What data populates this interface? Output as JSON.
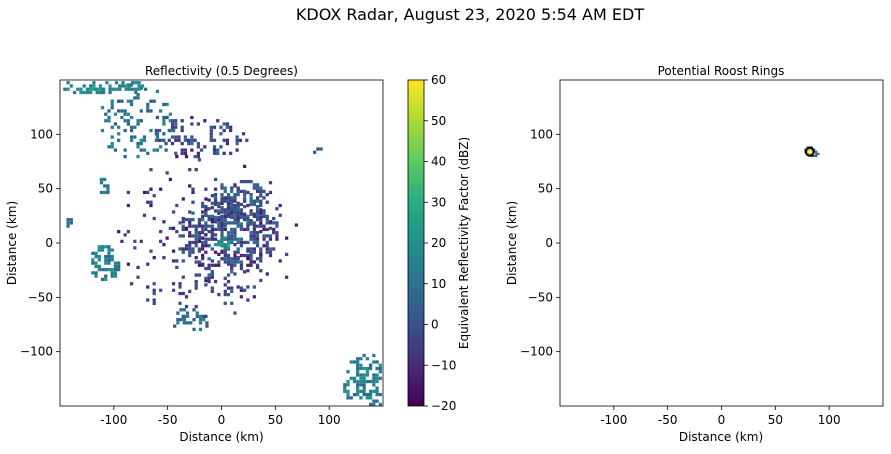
{
  "figure": {
    "title": "KDOX Radar, August 23, 2020 5:54 AM EDT"
  },
  "chart_data": [
    {
      "type": "heatmap",
      "title": "Reflectivity (0.5 Degrees)",
      "xlabel": "Distance (km)",
      "ylabel": "Distance (km)",
      "xlim": [
        -150,
        150
      ],
      "ylim": [
        -150,
        150
      ],
      "xticks": [
        -100,
        -50,
        0,
        50,
        100
      ],
      "yticks": [
        -100,
        -50,
        0,
        50,
        100
      ],
      "xtick_labels": [
        "-100",
        "-50",
        "0",
        "50",
        "100"
      ],
      "ytick_labels": [
        "−100",
        "−50",
        "0",
        "50",
        "100"
      ],
      "colormap": "viridis",
      "colorbar": {
        "label": "Equivalent Reflectivity Factor (dBZ)",
        "range": [
          -20,
          60
        ],
        "ticks": [
          -20,
          -10,
          0,
          10,
          20,
          30,
          40,
          50,
          60
        ],
        "tick_labels": [
          "−20",
          "−10",
          "0",
          "10",
          "20",
          "30",
          "40",
          "50",
          "60"
        ]
      },
      "regions": [
        {
          "name": "central-echo-core",
          "cx": 5,
          "cy": 5,
          "rx": 48,
          "ry": 36,
          "dbz": [
            -14,
            10
          ],
          "density": 0.6
        },
        {
          "name": "central-echo-halo",
          "cx": -15,
          "cy": 5,
          "rx": 85,
          "ry": 80,
          "dbz": [
            -16,
            2
          ],
          "density": 0.09
        },
        {
          "name": "northeast-arm",
          "cx": 15,
          "cy": 35,
          "rx": 28,
          "ry": 22,
          "dbz": [
            -10,
            12
          ],
          "density": 0.55
        },
        {
          "name": "center-bright-spot",
          "cx": 0,
          "cy": -2,
          "rx": 10,
          "ry": 7,
          "dbz": [
            15,
            28
          ],
          "density": 0.85
        },
        {
          "name": "north-scatter",
          "cx": -20,
          "cy": 95,
          "rx": 45,
          "ry": 20,
          "dbz": [
            -12,
            8
          ],
          "density": 0.28
        },
        {
          "name": "northwest-storm",
          "cx": -80,
          "cy": 110,
          "rx": 35,
          "ry": 35,
          "dbz": [
            0,
            20
          ],
          "density": 0.25
        },
        {
          "name": "top-left-storm",
          "cx": -110,
          "cy": 142,
          "rx": 40,
          "ry": 8,
          "dbz": [
            10,
            24
          ],
          "density": 0.65
        },
        {
          "name": "west-band",
          "cx": -110,
          "cy": -20,
          "rx": 14,
          "ry": 18,
          "dbz": [
            4,
            22
          ],
          "density": 0.7
        },
        {
          "name": "southwest-cell",
          "cx": -30,
          "cy": -72,
          "rx": 18,
          "ry": 12,
          "dbz": [
            0,
            16
          ],
          "density": 0.45
        },
        {
          "name": "south-feature",
          "cx": -10,
          "cy": -40,
          "rx": 30,
          "ry": 12,
          "dbz": [
            -10,
            8
          ],
          "density": 0.25
        },
        {
          "name": "east-cell",
          "cx": 87,
          "cy": 83,
          "rx": 5,
          "ry": 4,
          "dbz": [
            0,
            14
          ],
          "density": 0.8
        },
        {
          "name": "southeast-storm",
          "cx": 135,
          "cy": -128,
          "rx": 25,
          "ry": 25,
          "dbz": [
            5,
            22
          ],
          "density": 0.55
        },
        {
          "name": "west-edge-cell",
          "cx": -143,
          "cy": 17,
          "rx": 4,
          "ry": 6,
          "dbz": [
            6,
            18
          ],
          "density": 0.6
        },
        {
          "name": "far-west-pixel",
          "cx": -110,
          "cy": 52,
          "rx": 6,
          "ry": 10,
          "dbz": [
            4,
            16
          ],
          "density": 0.4
        }
      ]
    },
    {
      "type": "scatter",
      "title": "Potential Roost Rings",
      "xlabel": "Distance (km)",
      "ylabel": "Distance (km)",
      "xlim": [
        -150,
        150
      ],
      "ylim": [
        -150,
        150
      ],
      "xticks": [
        -100,
        -50,
        0,
        50,
        100
      ],
      "yticks": [
        -100,
        -50,
        0,
        50,
        100
      ],
      "xtick_labels": [
        "-100",
        "-50",
        "0",
        "50",
        "100"
      ],
      "ytick_labels": [
        "−100",
        "−50",
        "0",
        "50",
        "100"
      ],
      "rings": [
        {
          "x": 82,
          "y": 84,
          "radius_km": 4
        }
      ]
    }
  ]
}
